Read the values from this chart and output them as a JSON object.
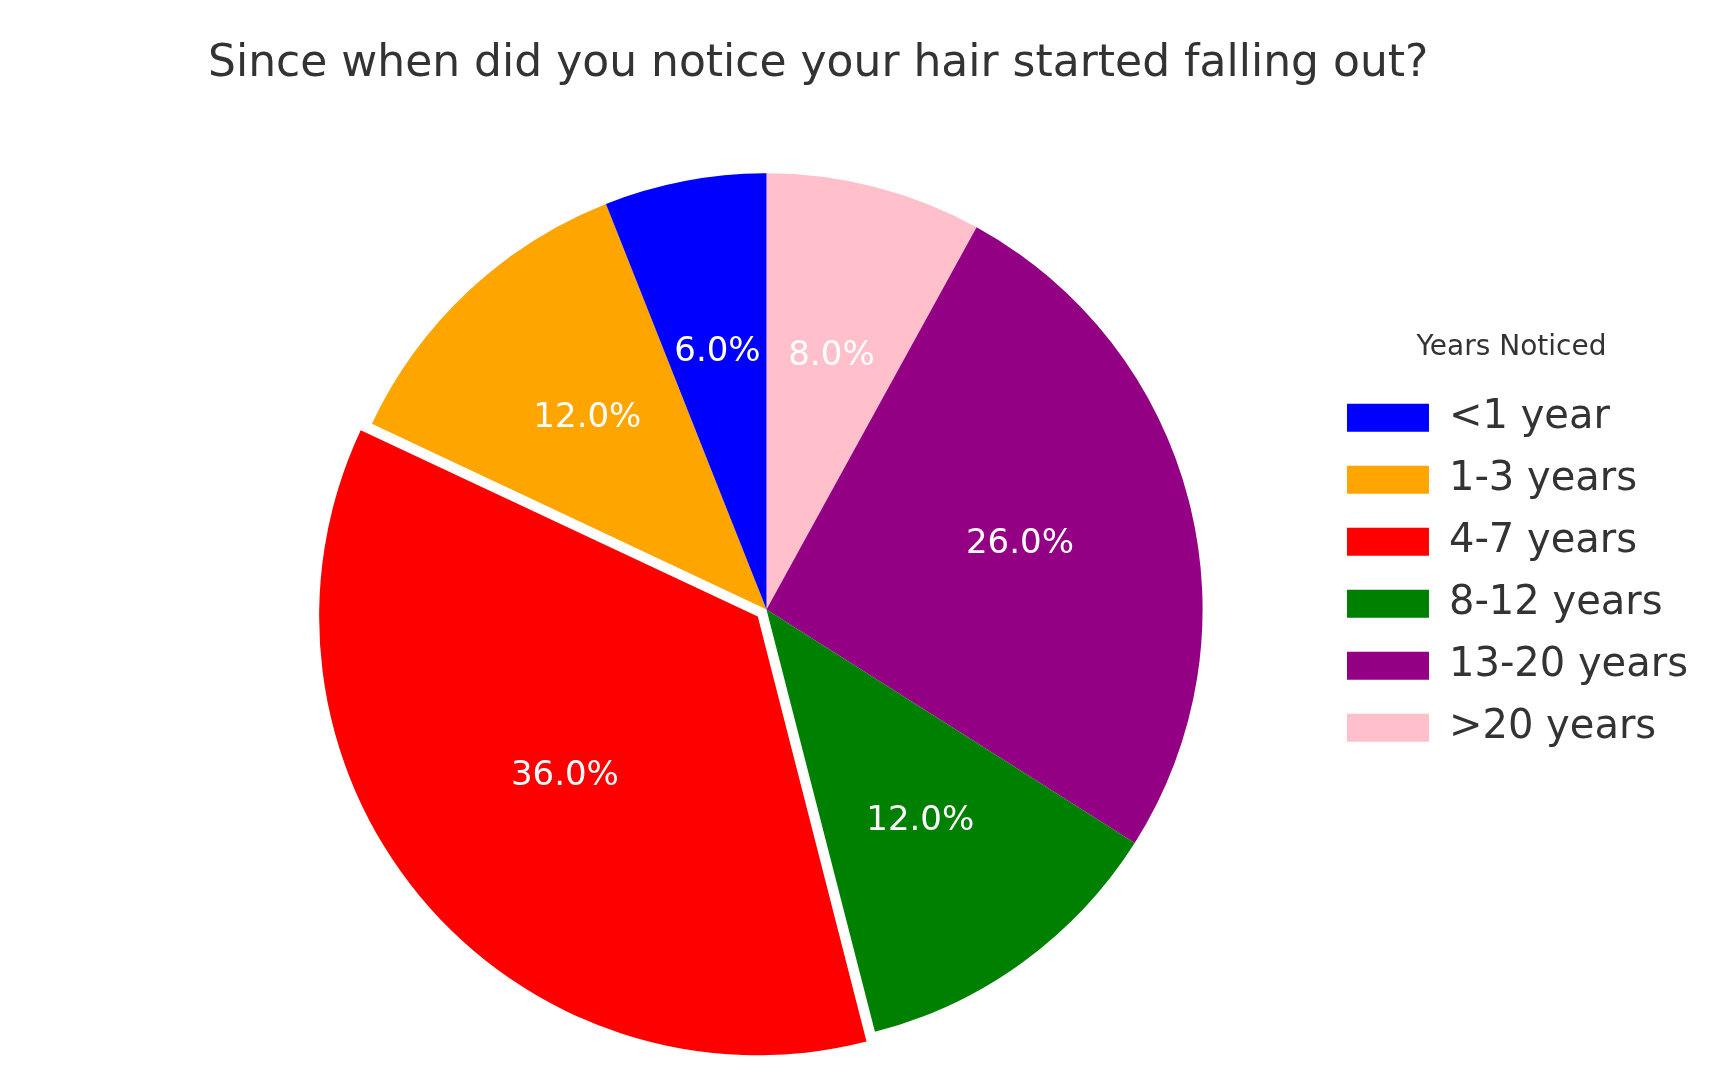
{
  "chart_data": {
    "type": "pie",
    "title": "Since when did you notice your hair started falling out?",
    "legend_title": "Years Noticed",
    "legend": "right",
    "categories": [
      "<1 year",
      "1-3 years",
      "4-7 years",
      "8-12 years",
      "13-20 years",
      ">20 years"
    ],
    "values": [
      6,
      12,
      36,
      12,
      26,
      8
    ],
    "colors": [
      "#0000ff",
      "#ffa500",
      "#ff0000",
      "#008000",
      "#940084",
      "#ffc0cb"
    ],
    "value_labels": [
      "6.0%",
      "12.0%",
      "36.0%",
      "12.0%",
      "26.0%",
      "8.0%"
    ]
  }
}
